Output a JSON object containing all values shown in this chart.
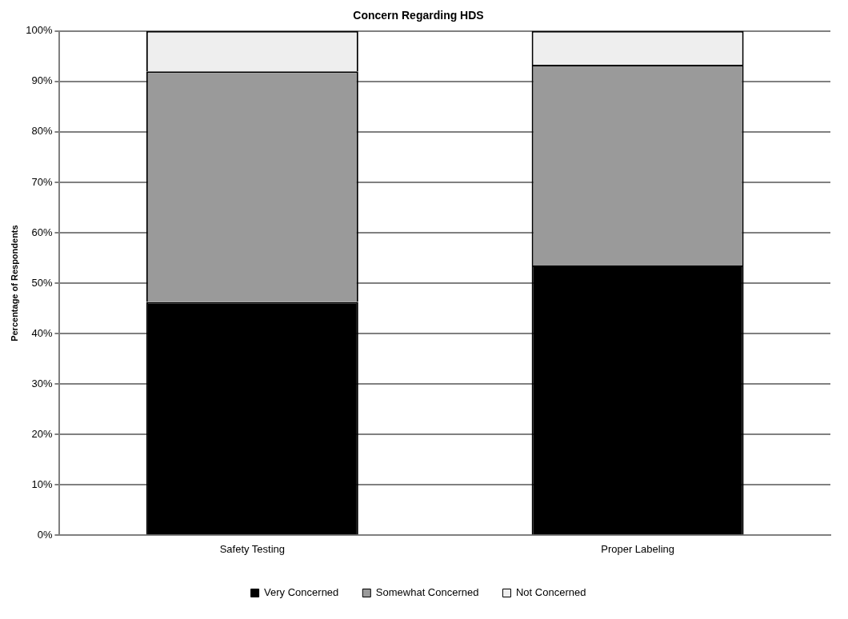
{
  "chart_data": {
    "type": "bar",
    "title": "Concern Regarding HDS",
    "ylabel": "Percentage of Respondents",
    "categories": [
      "Safety Testing",
      "Proper Labeling"
    ],
    "stacked": true,
    "series": [
      {
        "name": "Very Concerned",
        "color": "#000000",
        "values": [
          46.3,
          53.5
        ]
      },
      {
        "name": "Somewhat Concerned",
        "color": "#9a9a9a",
        "values": [
          45.7,
          39.8
        ]
      },
      {
        "name": "Not Concerned",
        "color": "#eeeeee",
        "values": [
          8,
          6.7
        ]
      }
    ],
    "ylim": [
      0,
      100
    ],
    "yticks": [
      {
        "value": 0,
        "label": "0%"
      },
      {
        "value": 10,
        "label": "10%"
      },
      {
        "value": 20,
        "label": "20%"
      },
      {
        "value": 30,
        "label": "30%"
      },
      {
        "value": 40,
        "label": "40%"
      },
      {
        "value": 50,
        "label": "50%"
      },
      {
        "value": 60,
        "label": "60%"
      },
      {
        "value": 70,
        "label": "70%"
      },
      {
        "value": 80,
        "label": "80%"
      },
      {
        "value": 90,
        "label": "90%"
      },
      {
        "value": 100,
        "label": "100%"
      }
    ],
    "grid": "y",
    "legend": "bottom"
  }
}
